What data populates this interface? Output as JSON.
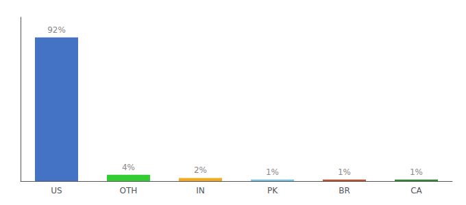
{
  "chart_data": {
    "type": "bar",
    "categories": [
      "US",
      "OTH",
      "IN",
      "PK",
      "BR",
      "CA"
    ],
    "values": [
      92,
      4,
      2,
      1,
      1,
      1
    ],
    "value_labels": [
      "92%",
      "4%",
      "2%",
      "1%",
      "1%",
      "1%"
    ],
    "data_labels": true,
    "colors": [
      "#4472c4",
      "#33cc33",
      "#f4a922",
      "#74c4e8",
      "#c0522a",
      "#2d8a2d"
    ],
    "ylim": [
      0,
      105
    ],
    "grid": false,
    "tick_labels": "x"
  }
}
